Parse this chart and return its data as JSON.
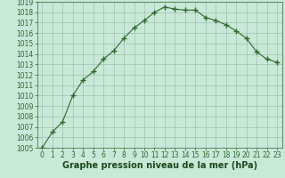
{
  "x": [
    0,
    1,
    2,
    3,
    4,
    5,
    6,
    7,
    8,
    9,
    10,
    11,
    12,
    13,
    14,
    15,
    16,
    17,
    18,
    19,
    20,
    21,
    22,
    23
  ],
  "y": [
    1005.0,
    1006.5,
    1007.5,
    1010.0,
    1011.5,
    1012.3,
    1013.5,
    1014.3,
    1015.5,
    1016.5,
    1017.2,
    1018.0,
    1018.5,
    1018.3,
    1018.2,
    1018.2,
    1017.5,
    1017.2,
    1016.8,
    1016.2,
    1015.5,
    1014.2,
    1013.5,
    1013.2
  ],
  "line_color": "#2d6a2d",
  "marker": "+",
  "marker_size": 4,
  "marker_linewidth": 1.0,
  "bg_color": "#c8e8d8",
  "grid_color": "#a0c0b0",
  "xlabel": "Graphe pression niveau de la mer (hPa)",
  "xlabel_color": "#1a4a1a",
  "xlabel_fontsize": 7,
  "ylim_min": 1005,
  "ylim_max": 1019,
  "xlim_min": -0.5,
  "xlim_max": 23.5,
  "ytick_step": 1,
  "tick_color": "#2d6a2d",
  "tick_fontsize": 5.5,
  "axis_color": "#2d6a2d",
  "linewidth": 0.8
}
